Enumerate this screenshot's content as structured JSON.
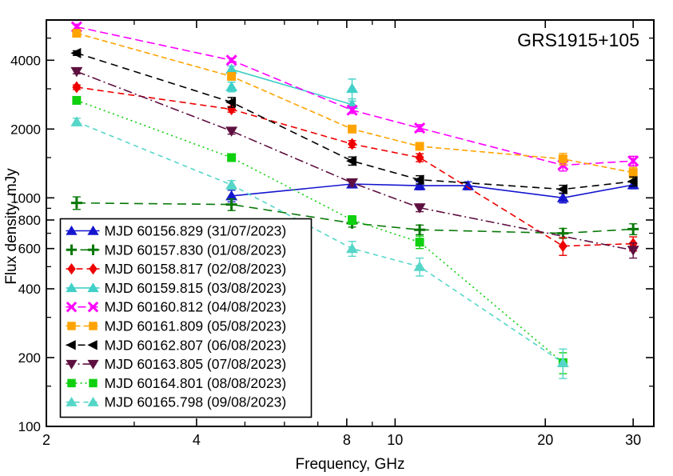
{
  "title": {
    "text": "GRS1915+105",
    "color": "#ee0000"
  },
  "chart_data": {
    "type": "line",
    "x_scale": "log",
    "y_scale": "log",
    "xlabel": "Frequency, GHz",
    "ylabel": "Flux density, mJy",
    "xlim": [
      2,
      33
    ],
    "ylim": [
      100,
      6000
    ],
    "x_major_ticks": [
      2,
      4,
      8,
      10,
      20,
      30
    ],
    "x_minor_ticks": [
      3,
      5,
      6,
      7,
      9
    ],
    "y_major_ticks": [
      100,
      200,
      400,
      600,
      800,
      1000,
      2000,
      4000
    ],
    "y_minor_ticks": [
      150,
      300,
      500,
      700,
      900,
      1500,
      3000,
      5000
    ],
    "grid": false,
    "legend_position": "bottom-left",
    "series": [
      {
        "label": "MJD 60156.829 (31/07/2023)",
        "color": "#1515d0",
        "marker": "triangle-up",
        "line": "solid",
        "dash": null,
        "in_legend": true,
        "points": [
          [
            4.7,
            1020,
            60
          ],
          [
            8.2,
            1150,
            45
          ],
          [
            11.2,
            1130,
            45
          ],
          [
            14,
            1130,
            45
          ],
          [
            21.7,
            1000,
            50
          ],
          [
            30,
            1140,
            45
          ]
        ]
      },
      {
        "label": "MJD 60157.830 (01/08/2023)",
        "color": "#077807",
        "marker": "plus",
        "line": "dash",
        "dash": "11,7",
        "in_legend": true,
        "points": [
          [
            2.3,
            950,
            60
          ],
          [
            4.7,
            935,
            55
          ],
          [
            8.2,
            775,
            30
          ],
          [
            11.2,
            725,
            35
          ],
          [
            21.7,
            700,
            35
          ],
          [
            30,
            730,
            40
          ]
        ]
      },
      {
        "label": "MJD 60158.817 (02/08/2023)",
        "color": "#ee0000",
        "marker": "diamond",
        "line": "dash",
        "dash": "8,5",
        "in_legend": true,
        "points": [
          [
            2.3,
            3050,
            70
          ],
          [
            4.7,
            2440,
            70
          ],
          [
            8.2,
            1720,
            60
          ],
          [
            11.2,
            1500,
            60
          ],
          [
            21.7,
            615,
            55
          ],
          [
            30,
            630,
            45
          ]
        ]
      },
      {
        "label": "MJD 60159.815 (03/08/2023)",
        "color": "#40d0c8",
        "marker": "triangle-up",
        "line": "solid",
        "dash": null,
        "in_legend": true,
        "points": [
          [
            4.7,
            3650,
            120
          ],
          [
            8.2,
            2560,
            90
          ]
        ]
      },
      {
        "label": "",
        "color": "#40d0c8",
        "marker": "triangle-up",
        "line": "none",
        "dash": null,
        "in_legend": false,
        "points": [
          [
            4.7,
            3060,
            150
          ],
          [
            8.2,
            3010,
            300
          ]
        ]
      },
      {
        "label": "MJD 60160.812 (04/08/2023)",
        "color": "#ff00ff",
        "marker": "x",
        "line": "dash",
        "dash": "10,5",
        "in_legend": true,
        "points": [
          [
            2.3,
            5600,
            150
          ],
          [
            4.7,
            4000,
            90
          ],
          [
            8.2,
            2420,
            80
          ],
          [
            11.2,
            2020,
            70
          ],
          [
            21.7,
            1390,
            80
          ],
          [
            30,
            1450,
            70
          ]
        ]
      },
      {
        "label": "MJD 60161.809 (05/08/2023)",
        "color": "#ffa300",
        "marker": "square",
        "line": "dash",
        "dash": "7,4",
        "in_legend": true,
        "points": [
          [
            2.3,
            5250,
            130
          ],
          [
            4.7,
            3400,
            80
          ],
          [
            8.2,
            2000,
            60
          ],
          [
            11.2,
            1680,
            60
          ],
          [
            21.7,
            1480,
            85
          ],
          [
            30,
            1290,
            70
          ]
        ]
      },
      {
        "label": "MJD 60162.807 (06/08/2023)",
        "color": "#000000",
        "marker": "triangle-left",
        "line": "dash",
        "dash": "9,6",
        "in_legend": true,
        "points": [
          [
            2.3,
            4300,
            100
          ],
          [
            4.7,
            2620,
            130
          ],
          [
            8.2,
            1450,
            60
          ],
          [
            11.2,
            1200,
            50
          ],
          [
            21.7,
            1090,
            45
          ],
          [
            30,
            1180,
            55
          ]
        ]
      },
      {
        "label": "MJD 60163.805 (07/08/2023)",
        "color": "#5e1040",
        "marker": "triangle-down",
        "line": "dashdot",
        "dash": "11,4,2,4",
        "in_legend": true,
        "points": [
          [
            2.3,
            3570,
            80
          ],
          [
            4.7,
            1960,
            60
          ],
          [
            8.2,
            1165,
            40
          ],
          [
            11.2,
            905,
            35
          ],
          [
            30,
            590,
            45
          ]
        ]
      },
      {
        "label": "MJD 60164.801 (08/08/2023)",
        "color": "#0fd00f",
        "marker": "square",
        "line": "dot",
        "dash": "2,4",
        "in_legend": true,
        "points": [
          [
            2.3,
            2670,
            60
          ],
          [
            4.7,
            1500,
            50
          ],
          [
            8.2,
            800,
            35
          ],
          [
            11.2,
            640,
            40
          ],
          [
            21.7,
            190,
            20
          ]
        ]
      },
      {
        "label": "MJD 60165.798 (09/08/2023)",
        "color": "#55d6c8",
        "marker": "triangle-up",
        "line": "dash",
        "dash": "6,5",
        "in_legend": true,
        "points": [
          [
            2.3,
            2150,
            80
          ],
          [
            4.7,
            1140,
            50
          ],
          [
            8.2,
            600,
            45
          ],
          [
            11.2,
            500,
            45
          ],
          [
            21.7,
            190,
            28
          ]
        ]
      }
    ]
  }
}
